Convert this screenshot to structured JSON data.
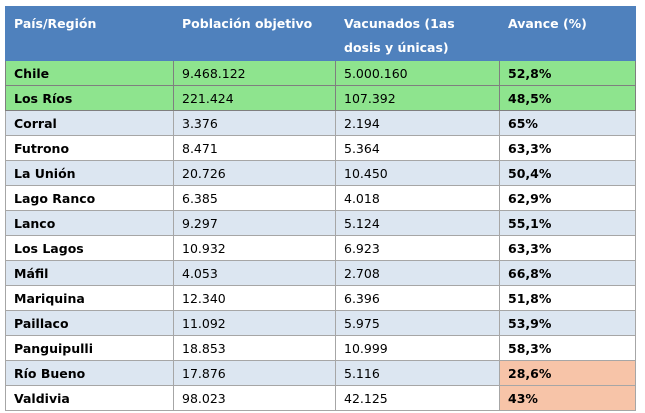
{
  "header": {
    "region": "País/Región",
    "population": "Población objetivo",
    "vaccinated": "Vacunados (1as dosis y únicas)",
    "progress": "Avance (%)"
  },
  "rows": [
    {
      "name": "Chile",
      "population": "9.468.122",
      "vaccinated": "5.000.160",
      "progress": "52,8%",
      "style": "highlight"
    },
    {
      "name": "Los Ríos",
      "population": "221.424",
      "vaccinated": "107.392",
      "progress": "48,5%",
      "style": "highlight"
    },
    {
      "name": "Corral",
      "population": "3.376",
      "vaccinated": "2.194",
      "progress": "65%",
      "style": "alt"
    },
    {
      "name": "Futrono",
      "population": "8.471",
      "vaccinated": "5.364",
      "progress": "63,3%",
      "style": "plain"
    },
    {
      "name": "La Unión",
      "population": "20.726",
      "vaccinated": "10.450",
      "progress": "50,4%",
      "style": "alt"
    },
    {
      "name": "Lago Ranco",
      "population": "6.385",
      "vaccinated": "4.018",
      "progress": "62,9%",
      "style": "plain"
    },
    {
      "name": "Lanco",
      "population": "9.297",
      "vaccinated": "5.124",
      "progress": "55,1%",
      "style": "alt"
    },
    {
      "name": "Los Lagos",
      "population": "10.932",
      "vaccinated": "6.923",
      "progress": "63,3%",
      "style": "plain"
    },
    {
      "name": "Máfil",
      "population": "4.053",
      "vaccinated": "2.708",
      "progress": "66,8%",
      "style": "alt"
    },
    {
      "name": "Mariquina",
      "population": "12.340",
      "vaccinated": "6.396",
      "progress": "51,8%",
      "style": "plain"
    },
    {
      "name": "Paillaco",
      "population": "11.092",
      "vaccinated": "5.975",
      "progress": "53,9%",
      "style": "alt"
    },
    {
      "name": "Panguipulli",
      "population": "18.853",
      "vaccinated": "10.999",
      "progress": "58,3%",
      "style": "plain"
    },
    {
      "name": "Río Bueno",
      "population": "17.876",
      "vaccinated": "5.116",
      "progress": "28,6%",
      "style": "alt",
      "low": true
    },
    {
      "name": "Valdivia",
      "population": "98.023",
      "vaccinated": "42.125",
      "progress": "43%",
      "style": "plain",
      "low": true
    }
  ],
  "colors": {
    "header": "#4f81bd",
    "highlight": "#8ee48e",
    "alt": "#dce6f1",
    "low": "#f7c4a8"
  }
}
